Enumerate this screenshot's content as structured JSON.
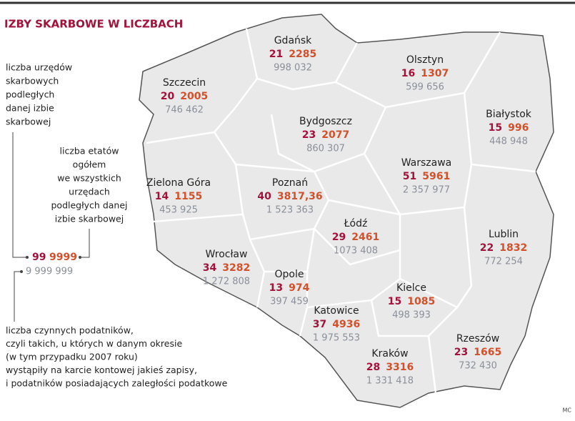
{
  "title": "IZBY SKARBOWE W LICZBACH",
  "legend": {
    "offices_note": [
      "liczba urzędów",
      "skarbowych",
      "podległych",
      "danej izbie",
      "skarbowej"
    ],
    "etats_note": [
      "liczba etatów",
      "ogółem",
      "we wszystkich",
      "urzędach",
      "podległych danej",
      "izbie skarbowej"
    ],
    "example": {
      "offices": "99",
      "etats": "9999",
      "taxpayers": "9 999 999"
    },
    "taxpayers_note": [
      "liczba czynnych podatników,",
      "czyli takich, u których w danym okresie",
      "(w tym przypadku 2007 roku)",
      "wystąpiły na karcie kontowej jakieś zapisy,",
      "i podatników posiadających zaległości podatkowe"
    ]
  },
  "regions": [
    {
      "name": "Gdańsk",
      "offices": "21",
      "etats": "2285",
      "taxpayers": "998 032"
    },
    {
      "name": "Olsztyn",
      "offices": "16",
      "etats": "1307",
      "taxpayers": "599 656"
    },
    {
      "name": "Szczecin",
      "offices": "20",
      "etats": "2005",
      "taxpayers": "746 462"
    },
    {
      "name": "Bydgoszcz",
      "offices": "23",
      "etats": "2077",
      "taxpayers": "860 307"
    },
    {
      "name": "Białystok",
      "offices": "15",
      "etats": "996",
      "taxpayers": "448 948"
    },
    {
      "name": "Zielona Góra",
      "offices": "14",
      "etats": "1155",
      "taxpayers": "453 925"
    },
    {
      "name": "Poznań",
      "offices": "40",
      "etats": "3817,36",
      "taxpayers": "1 523 363"
    },
    {
      "name": "Warszawa",
      "offices": "51",
      "etats": "5961",
      "taxpayers": "2 357 977"
    },
    {
      "name": "Łódź",
      "offices": "29",
      "etats": "2461",
      "taxpayers": "1073 408"
    },
    {
      "name": "Lublin",
      "offices": "22",
      "etats": "1832",
      "taxpayers": "772 254"
    },
    {
      "name": "Wrocław",
      "offices": "34",
      "etats": "3282",
      "taxpayers": "1 272 808"
    },
    {
      "name": "Opole",
      "offices": "13",
      "etats": "974",
      "taxpayers": "397 459"
    },
    {
      "name": "Kielce",
      "offices": "15",
      "etats": "1085",
      "taxpayers": "498 393"
    },
    {
      "name": "Katowice",
      "offices": "37",
      "etats": "4936",
      "taxpayers": "1 975 553"
    },
    {
      "name": "Rzeszów",
      "offices": "23",
      "etats": "1665",
      "taxpayers": "732 430"
    },
    {
      "name": "Kraków",
      "offices": "28",
      "etats": "3316",
      "taxpayers": "1 331 418"
    }
  ],
  "credit": "MC"
}
